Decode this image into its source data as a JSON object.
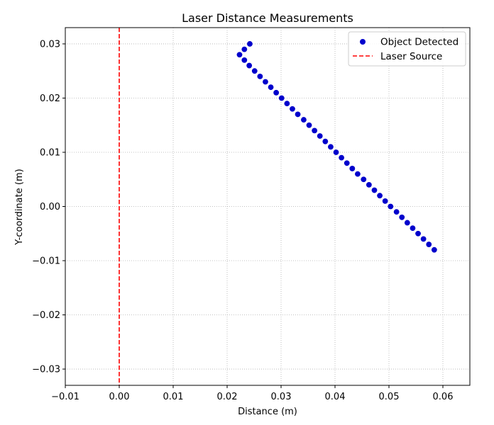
{
  "chart_data": {
    "type": "scatter",
    "title": "Laser Distance Measurements",
    "xlabel": "Distance (m)",
    "ylabel": "Y-coordinate (m)",
    "xlim": [
      -0.01,
      0.065
    ],
    "ylim": [
      -0.033,
      0.033
    ],
    "xticks": [
      -0.01,
      0.0,
      0.01,
      0.02,
      0.03,
      0.04,
      0.05,
      0.06
    ],
    "xtick_labels": [
      "−0.01",
      "0.00",
      "0.01",
      "0.02",
      "0.03",
      "0.04",
      "0.05",
      "0.06"
    ],
    "yticks": [
      -0.03,
      -0.02,
      -0.01,
      0.0,
      0.01,
      0.02,
      0.03
    ],
    "ytick_labels": [
      "−0.03",
      "−0.02",
      "−0.01",
      "0.00",
      "0.01",
      "0.02",
      "0.03"
    ],
    "grid": true,
    "legend_position": "top-right",
    "series": [
      {
        "name": "Object Detected",
        "kind": "scatter",
        "color": "#0000cc",
        "points": [
          [
            0.0242,
            0.03
          ],
          [
            0.0232,
            0.029
          ],
          [
            0.0223,
            0.028
          ],
          [
            0.0232,
            0.027
          ],
          [
            0.0241,
            0.026
          ],
          [
            0.0251,
            0.025
          ],
          [
            0.0261,
            0.024
          ],
          [
            0.0271,
            0.023
          ],
          [
            0.0281,
            0.022
          ],
          [
            0.0291,
            0.021
          ],
          [
            0.0301,
            0.02
          ],
          [
            0.0311,
            0.019
          ],
          [
            0.0321,
            0.018
          ],
          [
            0.0331,
            0.017
          ],
          [
            0.0342,
            0.016
          ],
          [
            0.0352,
            0.015
          ],
          [
            0.0362,
            0.014
          ],
          [
            0.0372,
            0.013
          ],
          [
            0.0382,
            0.012
          ],
          [
            0.0392,
            0.011
          ],
          [
            0.0402,
            0.01
          ],
          [
            0.0412,
            0.009
          ],
          [
            0.0422,
            0.008
          ],
          [
            0.0432,
            0.007
          ],
          [
            0.0442,
            0.006
          ],
          [
            0.0453,
            0.005
          ],
          [
            0.0463,
            0.004
          ],
          [
            0.0473,
            0.003
          ],
          [
            0.0483,
            0.002
          ],
          [
            0.0493,
            0.001
          ],
          [
            0.0503,
            0.0
          ],
          [
            0.0514,
            -0.001
          ],
          [
            0.0524,
            -0.002
          ],
          [
            0.0534,
            -0.003
          ],
          [
            0.0544,
            -0.004
          ],
          [
            0.0554,
            -0.005
          ],
          [
            0.0564,
            -0.006
          ],
          [
            0.0574,
            -0.007
          ],
          [
            0.0584,
            -0.008
          ]
        ]
      },
      {
        "name": "Laser Source",
        "kind": "vline",
        "x": 0.0,
        "color": "#ff0000",
        "linestyle": "dashed"
      }
    ]
  }
}
